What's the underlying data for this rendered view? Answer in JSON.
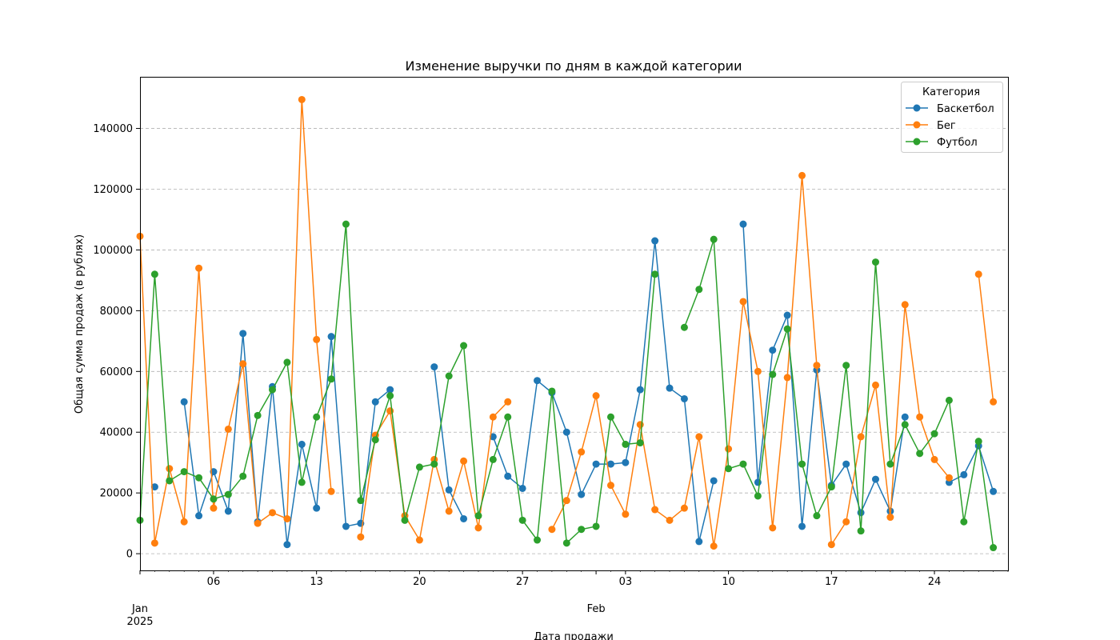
{
  "chart_data": {
    "type": "line",
    "title": "Изменение выручки по дням в каждой категории",
    "xlabel": "Дата продажи",
    "ylabel": "Общая сумма продаж (в рублях)",
    "ylim": [
      -5500,
      157000
    ],
    "yticks": [
      0,
      20000,
      40000,
      60000,
      80000,
      100000,
      120000,
      140000
    ],
    "grid": "y-dashed",
    "x_start": "2025-01-01",
    "x_end": "2025-03-01",
    "x_dates": [
      "2025-01-01",
      "2025-01-02",
      "2025-01-03",
      "2025-01-04",
      "2025-01-05",
      "2025-01-06",
      "2025-01-07",
      "2025-01-08",
      "2025-01-09",
      "2025-01-10",
      "2025-01-11",
      "2025-01-12",
      "2025-01-13",
      "2025-01-14",
      "2025-01-15",
      "2025-01-16",
      "2025-01-17",
      "2025-01-18",
      "2025-01-19",
      "2025-01-20",
      "2025-01-21",
      "2025-01-22",
      "2025-01-23",
      "2025-01-24",
      "2025-01-25",
      "2025-01-26",
      "2025-01-27",
      "2025-01-28",
      "2025-01-29",
      "2025-01-30",
      "2025-01-31",
      "2025-02-01",
      "2025-02-02",
      "2025-02-03",
      "2025-02-04",
      "2025-02-05",
      "2025-02-06",
      "2025-02-07",
      "2025-02-08",
      "2025-02-09",
      "2025-02-10",
      "2025-02-11",
      "2025-02-12",
      "2025-02-13",
      "2025-02-14",
      "2025-02-15",
      "2025-02-16",
      "2025-02-17",
      "2025-02-18",
      "2025-02-19",
      "2025-02-20",
      "2025-02-21",
      "2025-02-22",
      "2025-02-23",
      "2025-02-24",
      "2025-02-25",
      "2025-02-26",
      "2025-02-27",
      "2025-02-28"
    ],
    "xtick_labels": [
      {
        "date": "2025-01-06",
        "label": "06"
      },
      {
        "date": "2025-01-13",
        "label": "13"
      },
      {
        "date": "2025-01-20",
        "label": "20"
      },
      {
        "date": "2025-01-27",
        "label": "27"
      },
      {
        "date": "2025-02-03",
        "label": "03"
      },
      {
        "date": "2025-02-10",
        "label": "10"
      },
      {
        "date": "2025-02-17",
        "label": "17"
      },
      {
        "date": "2025-02-24",
        "label": "24"
      }
    ],
    "month_labels": [
      {
        "date": "2025-01-01",
        "label": "Jan",
        "sub": "2025"
      },
      {
        "date": "2025-02-01",
        "label": "Feb",
        "sub": ""
      }
    ],
    "legend": {
      "title": "Категория",
      "placement": "top-right"
    },
    "series": [
      {
        "name": "Баскетбол",
        "color": "#1f77b4",
        "values": [
          null,
          22000,
          null,
          50000,
          12500,
          27000,
          14000,
          72500,
          10500,
          55000,
          3000,
          36000,
          15000,
          71500,
          9000,
          10000,
          50000,
          54000,
          null,
          null,
          61500,
          21000,
          11500,
          null,
          38500,
          25500,
          21500,
          57000,
          53000,
          40000,
          19500,
          29500,
          29500,
          30000,
          54000,
          103000,
          54500,
          51000,
          4000,
          24000,
          null,
          108500,
          23500,
          67000,
          78500,
          9000,
          60500,
          22500,
          29500,
          13500,
          24500,
          14000,
          45000,
          null,
          null,
          23500,
          26000,
          35500,
          20500
        ]
      },
      {
        "name": "Бег",
        "color": "#ff7f0e",
        "values": [
          104500,
          3500,
          28000,
          10500,
          94000,
          15000,
          41000,
          62500,
          10000,
          13500,
          11500,
          149500,
          70500,
          20500,
          null,
          5500,
          39000,
          47000,
          12500,
          4500,
          31000,
          14000,
          30500,
          8500,
          45000,
          50000,
          null,
          null,
          8000,
          17500,
          33500,
          52000,
          22500,
          13000,
          42500,
          14500,
          11000,
          15000,
          38500,
          2500,
          34500,
          83000,
          60000,
          8500,
          58000,
          124500,
          62000,
          3000,
          10500,
          38500,
          55500,
          12000,
          82000,
          45000,
          31000,
          25000,
          null,
          92000,
          50000
        ]
      },
      {
        "name": "Футбол",
        "color": "#2ca02c",
        "values": [
          11000,
          92000,
          24000,
          27000,
          25000,
          18000,
          19500,
          25500,
          45500,
          54000,
          63000,
          23500,
          45000,
          57500,
          108500,
          17500,
          37500,
          52000,
          11000,
          28500,
          29500,
          58500,
          68500,
          12500,
          31000,
          45000,
          11000,
          4500,
          53500,
          3500,
          8000,
          9000,
          45000,
          36000,
          36500,
          92000,
          null,
          74500,
          87000,
          103500,
          28000,
          29500,
          19000,
          59000,
          74000,
          29500,
          12500,
          22000,
          62000,
          7500,
          96000,
          29500,
          42500,
          33000,
          39500,
          50500,
          10500,
          37000,
          2000
        ]
      }
    ]
  }
}
